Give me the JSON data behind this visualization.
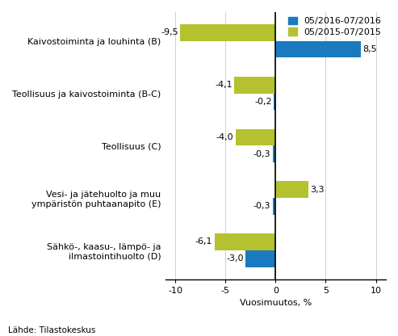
{
  "categories": [
    "Kaivostoiminta ja louhinta (B)",
    "Teollisuus ja kaivostoiminta (B-C)",
    "Teollisuus (C)",
    "Vesi- ja jätehuolto ja muu\nympäristön puhtaanapito (E)",
    "Sähkö-, kaasu-, lämpö- ja\nilmastointihuolto (D)"
  ],
  "series1_label": "05/2016-07/2016",
  "series2_label": "05/2015-07/2015",
  "series1_values": [
    8.5,
    -0.2,
    -0.3,
    -0.3,
    -3.0
  ],
  "series2_values": [
    -9.5,
    -4.1,
    -4.0,
    3.3,
    -6.1
  ],
  "series1_color": "#1a7abf",
  "series2_color": "#b5c12e",
  "xlabel": "Vuosimuutos, %",
  "xlim": [
    -11,
    11
  ],
  "xticks": [
    -10,
    -5,
    0,
    5,
    10
  ],
  "bar_height": 0.32,
  "source_text": "Lähde: Tilastokeskus",
  "background_color": "#ffffff",
  "label_fontsize": 8.0,
  "tick_fontsize": 8.0,
  "value_fontsize": 8.0,
  "legend_fontsize": 8.0
}
